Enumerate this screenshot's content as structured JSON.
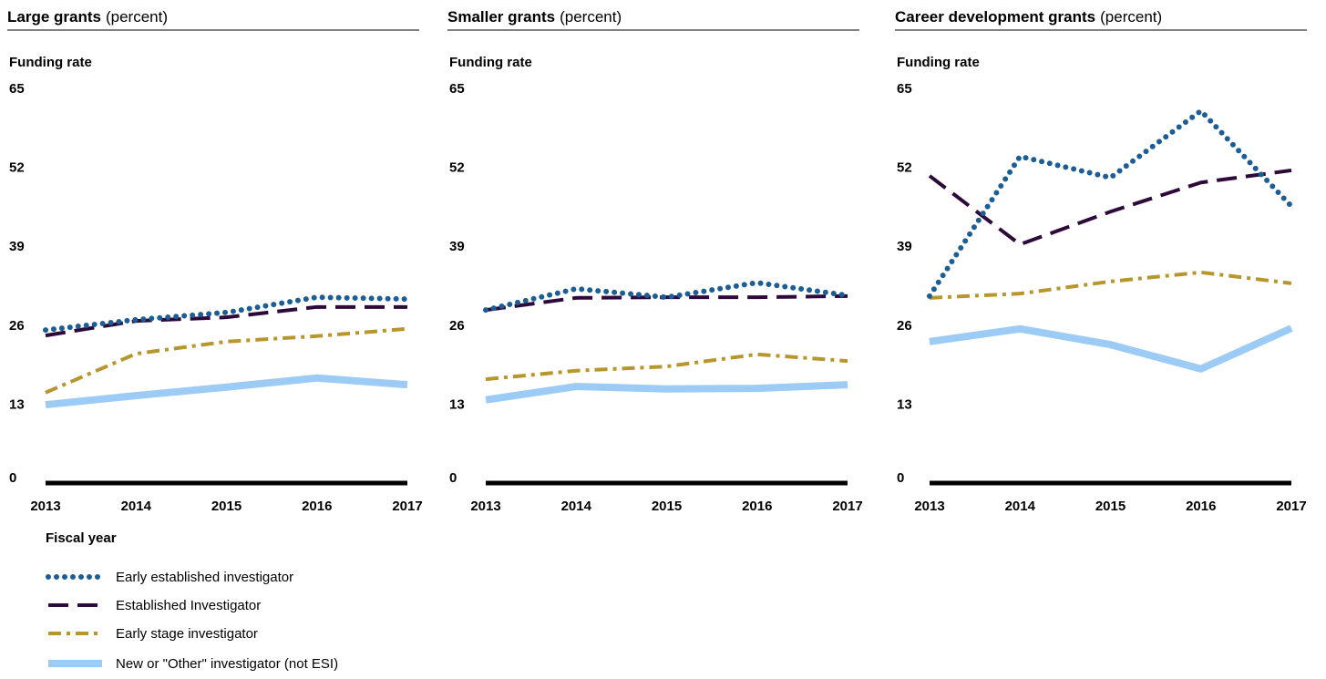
{
  "chart_data": [
    {
      "type": "line",
      "title": "Large grants",
      "unit": "(percent)",
      "ylabel": "Funding rate",
      "xlabel": "Fiscal year",
      "categories": [
        "2013",
        "2014",
        "2015",
        "2016",
        "2017"
      ],
      "ylim": [
        0,
        65
      ],
      "yticks": [
        0,
        13,
        26,
        39,
        52,
        65
      ],
      "series": [
        {
          "name": "Early established investigator",
          "color": "#1b5e96",
          "style": "dotted",
          "values": [
            25.2,
            26.9,
            28.1,
            30.6,
            30.3
          ]
        },
        {
          "name": "Established Investigator",
          "color": "#2e0a3a",
          "style": "dashed",
          "values": [
            24.3,
            26.7,
            27.3,
            29.0,
            29.0
          ]
        },
        {
          "name": "Early stage investigator",
          "color": "#b8962e",
          "style": "dashdot",
          "values": [
            14.9,
            21.3,
            23.3,
            24.2,
            25.4
          ]
        },
        {
          "name": "New or \"Other\" investigator (not ESI)",
          "color": "#9ccbf5",
          "style": "solid",
          "values": [
            12.9,
            14.4,
            15.8,
            17.3,
            16.2
          ]
        }
      ]
    },
    {
      "type": "line",
      "title": "Smaller grants",
      "unit": "(percent)",
      "ylabel": "Funding rate",
      "categories": [
        "2013",
        "2014",
        "2015",
        "2016",
        "2017"
      ],
      "ylim": [
        0,
        65
      ],
      "yticks": [
        0,
        13,
        26,
        39,
        52,
        65
      ],
      "series": [
        {
          "color": "#1b5e96",
          "style": "dotted",
          "values": [
            28.5,
            32.0,
            30.6,
            33.0,
            30.9
          ]
        },
        {
          "color": "#2e0a3a",
          "style": "dashed",
          "values": [
            28.5,
            30.5,
            30.6,
            30.6,
            30.8
          ]
        },
        {
          "color": "#b8962e",
          "style": "dashdot",
          "values": [
            17.1,
            18.5,
            19.2,
            21.2,
            20.1
          ]
        },
        {
          "color": "#9ccbf5",
          "style": "solid",
          "values": [
            13.7,
            15.9,
            15.5,
            15.6,
            16.2
          ]
        }
      ]
    },
    {
      "type": "line",
      "title": "Career development grants",
      "unit": "(percent)",
      "ylabel": "Funding rate",
      "categories": [
        "2013",
        "2014",
        "2015",
        "2016",
        "2017"
      ],
      "ylim": [
        0,
        65
      ],
      "yticks": [
        0,
        13,
        26,
        39,
        52,
        65
      ],
      "series": [
        {
          "color": "#1b5e96",
          "style": "dotted",
          "values": [
            30.8,
            53.8,
            50.3,
            61.3,
            45.6
          ]
        },
        {
          "color": "#2e0a3a",
          "style": "dashed",
          "values": [
            50.6,
            39.3,
            44.7,
            49.5,
            51.5
          ]
        },
        {
          "color": "#b8962e",
          "style": "dashdot",
          "values": [
            30.5,
            31.2,
            33.2,
            34.7,
            32.9
          ]
        },
        {
          "color": "#9ccbf5",
          "style": "solid",
          "values": [
            23.3,
            25.4,
            22.8,
            18.8,
            25.5
          ]
        }
      ]
    }
  ]
}
